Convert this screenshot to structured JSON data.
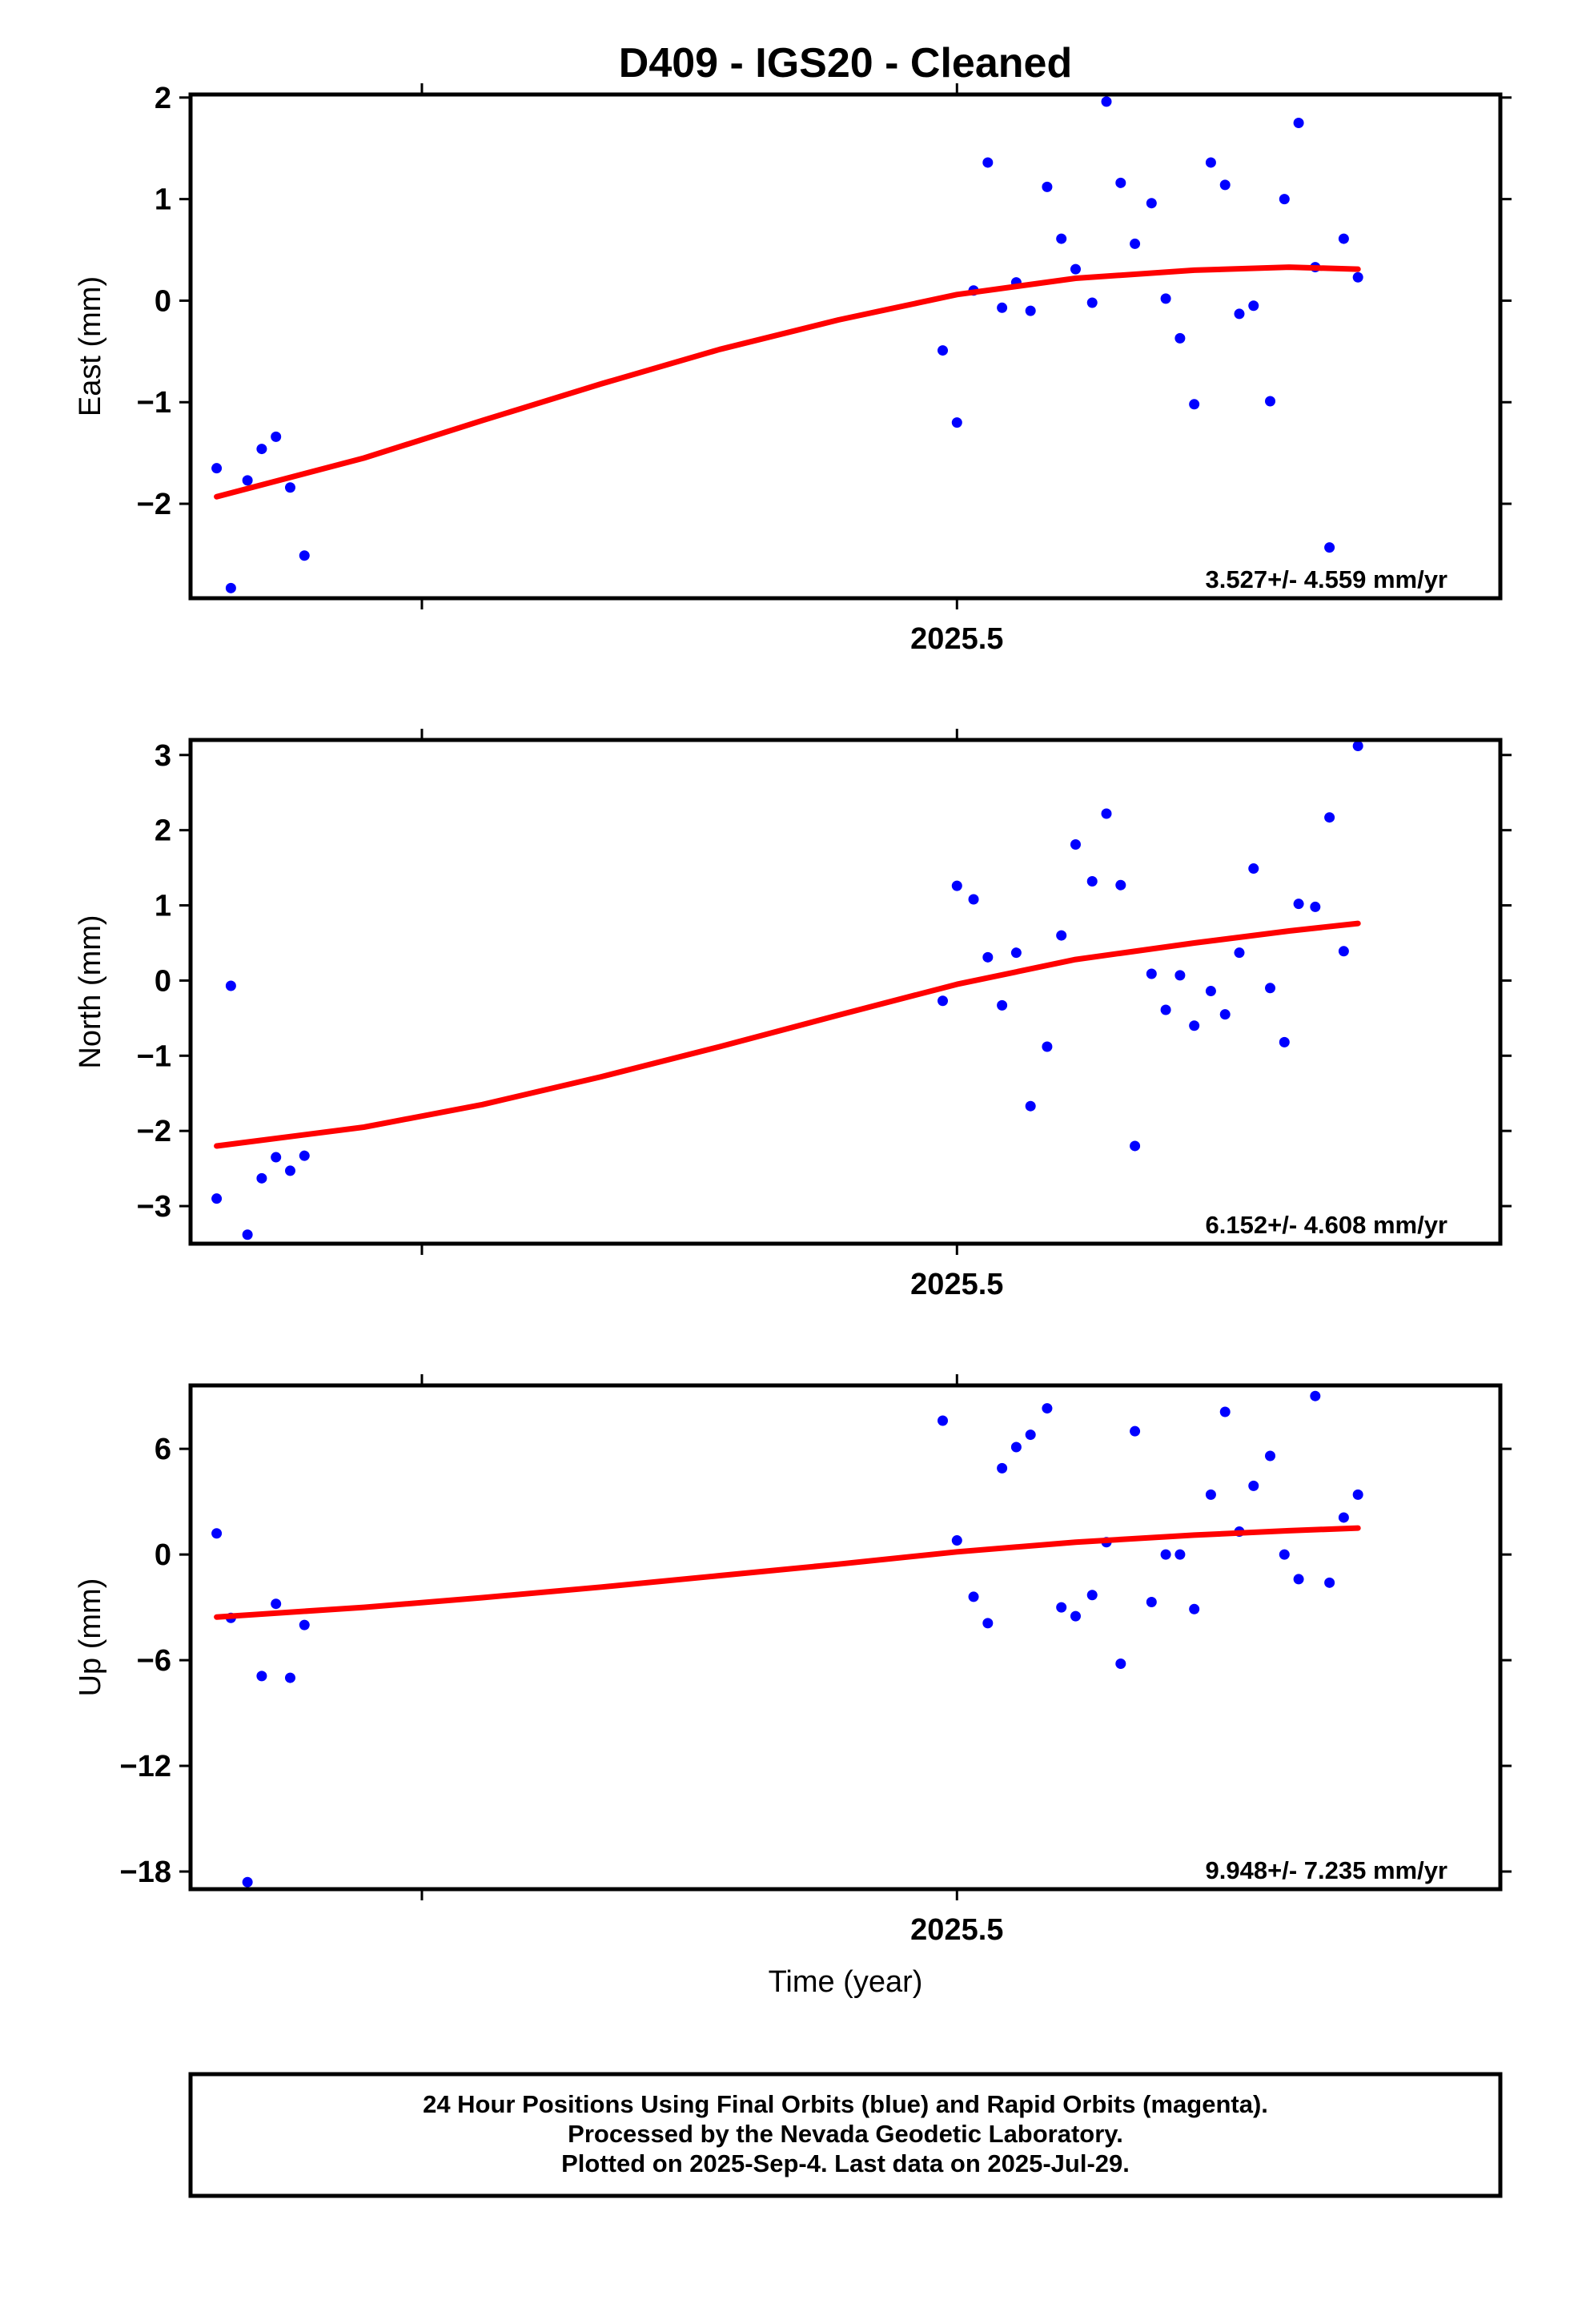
{
  "title": "D409  - IGS20 - Cleaned",
  "xlabel": "Time (year)",
  "x_tick_label": "2025.5",
  "caption": {
    "line1": "24 Hour Positions Using Final Orbits (blue) and Rapid Orbits (magenta).",
    "line2": "Processed by the Nevada Geodetic Laboratory.",
    "line3": "Plotted on 2025-Sep-4. Last data on 2025-Jul-29."
  },
  "colors": {
    "points": "#0000ff",
    "fit": "#ff0000",
    "frame": "#000000"
  },
  "chart_data": [
    {
      "type": "scatter",
      "name": "east",
      "ylabel": "East (mm)",
      "rate_label": "3.527+/- 4.559 mm/yr",
      "xlim": [
        2025.177,
        2025.729
      ],
      "ylim": [
        -2.93,
        2.03
      ],
      "yticks": [
        2,
        1,
        0,
        -1,
        -2
      ],
      "ytick_labels": [
        "2",
        "1",
        "0",
        "−1",
        "−2"
      ],
      "x": [
        2025.188,
        2025.194,
        2025.201,
        2025.207,
        2025.213,
        2025.219,
        2025.225,
        2025.494,
        2025.5,
        2025.507,
        2025.513,
        2025.519,
        2025.525,
        2025.531,
        2025.538,
        2025.544,
        2025.55,
        2025.557,
        2025.563,
        2025.569,
        2025.575,
        2025.582,
        2025.588,
        2025.594,
        2025.6,
        2025.607,
        2025.613,
        2025.619,
        2025.625,
        2025.632,
        2025.638,
        2025.644,
        2025.651,
        2025.657,
        2025.663,
        2025.669
      ],
      "y": [
        -1.65,
        -2.83,
        -1.77,
        -1.46,
        -1.34,
        -1.84,
        -2.51,
        -0.49,
        -1.2,
        0.1,
        1.36,
        -0.07,
        0.18,
        -0.1,
        1.12,
        0.61,
        0.31,
        -0.02,
        1.96,
        1.16,
        0.56,
        0.96,
        0.02,
        -0.37,
        -1.02,
        1.36,
        1.14,
        -0.13,
        -0.05,
        -0.99,
        1.0,
        1.75,
        0.33,
        -2.43,
        0.61,
        0.23
      ],
      "fit": [
        [
          2025.188,
          -1.93
        ],
        [
          2025.25,
          -1.55
        ],
        [
          2025.3,
          -1.18
        ],
        [
          2025.35,
          -0.82
        ],
        [
          2025.4,
          -0.48
        ],
        [
          2025.45,
          -0.19
        ],
        [
          2025.5,
          0.06
        ],
        [
          2025.55,
          0.22
        ],
        [
          2025.6,
          0.3
        ],
        [
          2025.64,
          0.33
        ],
        [
          2025.669,
          0.31
        ]
      ]
    },
    {
      "type": "scatter",
      "name": "north",
      "ylabel": "North (mm)",
      "rate_label": "6.152+/- 4.608 mm/yr",
      "xlim": [
        2025.177,
        2025.729
      ],
      "ylim": [
        -3.5,
        3.2
      ],
      "yticks": [
        3,
        2,
        1,
        0,
        -1,
        -2,
        -3
      ],
      "ytick_labels": [
        "3",
        "2",
        "1",
        "0",
        "−1",
        "−2",
        "−3"
      ],
      "x": [
        2025.188,
        2025.194,
        2025.201,
        2025.207,
        2025.213,
        2025.219,
        2025.225,
        2025.494,
        2025.5,
        2025.507,
        2025.513,
        2025.519,
        2025.525,
        2025.531,
        2025.538,
        2025.544,
        2025.55,
        2025.557,
        2025.563,
        2025.569,
        2025.575,
        2025.582,
        2025.588,
        2025.594,
        2025.6,
        2025.607,
        2025.613,
        2025.619,
        2025.625,
        2025.632,
        2025.638,
        2025.644,
        2025.651,
        2025.657,
        2025.663,
        2025.669
      ],
      "y": [
        -2.9,
        -0.07,
        -3.38,
        -2.63,
        -2.35,
        -2.53,
        -2.33,
        -0.27,
        1.26,
        1.08,
        0.31,
        -0.33,
        0.37,
        -1.67,
        -0.88,
        0.6,
        1.81,
        1.32,
        2.22,
        1.27,
        -2.2,
        0.09,
        -0.39,
        0.07,
        -0.6,
        -0.14,
        -0.45,
        0.37,
        1.49,
        -0.1,
        -0.82,
        1.02,
        0.98,
        2.17,
        0.39,
        3.12
      ],
      "fit": [
        [
          2025.188,
          -2.2
        ],
        [
          2025.25,
          -1.95
        ],
        [
          2025.3,
          -1.65
        ],
        [
          2025.35,
          -1.28
        ],
        [
          2025.4,
          -0.88
        ],
        [
          2025.45,
          -0.46
        ],
        [
          2025.5,
          -0.05
        ],
        [
          2025.55,
          0.28
        ],
        [
          2025.6,
          0.5
        ],
        [
          2025.64,
          0.66
        ],
        [
          2025.669,
          0.76
        ]
      ]
    },
    {
      "type": "scatter",
      "name": "up",
      "ylabel": "Up (mm)",
      "rate_label": "9.948+/- 7.235 mm/yr",
      "xlim": [
        2025.177,
        2025.729
      ],
      "ylim": [
        -19.0,
        9.6
      ],
      "yticks": [
        6,
        0,
        -6,
        -12,
        -18
      ],
      "ytick_labels": [
        "6",
        "0",
        "−6",
        "−12",
        "−18"
      ],
      "x": [
        2025.188,
        2025.194,
        2025.201,
        2025.207,
        2025.213,
        2025.219,
        2025.225,
        2025.494,
        2025.5,
        2025.507,
        2025.513,
        2025.519,
        2025.525,
        2025.531,
        2025.538,
        2025.544,
        2025.55,
        2025.557,
        2025.563,
        2025.569,
        2025.575,
        2025.582,
        2025.588,
        2025.594,
        2025.6,
        2025.607,
        2025.613,
        2025.619,
        2025.625,
        2025.632,
        2025.638,
        2025.644,
        2025.651,
        2025.657,
        2025.663,
        2025.669
      ],
      "y": [
        1.2,
        -3.6,
        -18.6,
        -6.9,
        -2.8,
        -7.0,
        -4.0,
        7.6,
        0.8,
        -2.4,
        -3.9,
        4.9,
        6.1,
        6.8,
        8.3,
        -3.0,
        -3.5,
        -2.3,
        0.7,
        -6.2,
        7.0,
        -2.7,
        0.0,
        0.0,
        -3.1,
        3.4,
        8.1,
        1.3,
        3.9,
        5.6,
        0.0,
        -1.4,
        9.0,
        -1.6,
        2.1,
        3.4
      ],
      "fit": [
        [
          2025.188,
          -3.55
        ],
        [
          2025.25,
          -3.0
        ],
        [
          2025.3,
          -2.45
        ],
        [
          2025.35,
          -1.85
        ],
        [
          2025.4,
          -1.2
        ],
        [
          2025.45,
          -0.55
        ],
        [
          2025.5,
          0.15
        ],
        [
          2025.55,
          0.7
        ],
        [
          2025.6,
          1.1
        ],
        [
          2025.64,
          1.35
        ],
        [
          2025.669,
          1.5
        ]
      ]
    }
  ]
}
